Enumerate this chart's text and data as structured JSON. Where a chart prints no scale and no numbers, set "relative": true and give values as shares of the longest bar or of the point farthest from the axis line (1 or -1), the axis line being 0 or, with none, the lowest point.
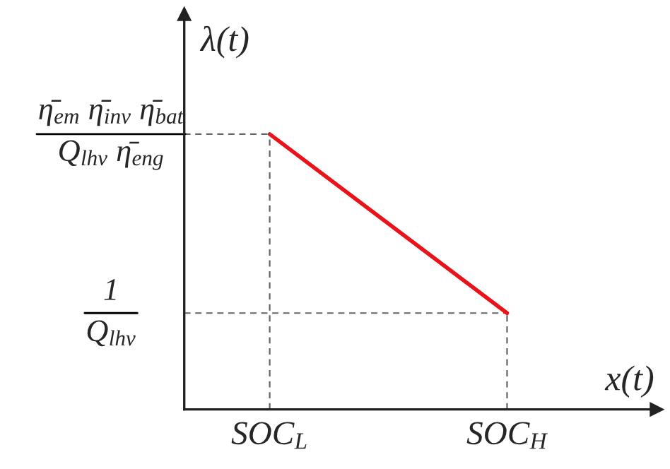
{
  "chart_data": {
    "type": "line",
    "relative": true,
    "xlabel": "x(t)",
    "ylabel": "λ(t)",
    "categories": [
      "SOC$_{L}$",
      "SOC$_{H}$"
    ],
    "values": [
      1,
      0.35
    ],
    "color": "#e8141b",
    "line_style": "solid",
    "annotations": [
      "η̄$_{em}$ η̄$_{inv}$ η̄$_{bat}$\nQ$_{lhv}$ η̄$_{eng}$",
      "1\nQ$_{lhv}$"
    ]
  }
}
